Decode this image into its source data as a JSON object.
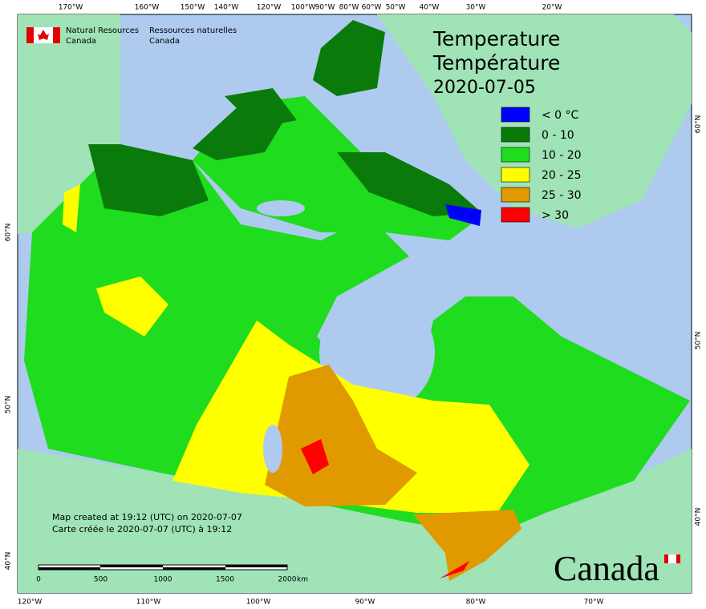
{
  "header": {
    "agency_en": "Natural Resources",
    "country_en": "Canada",
    "agency_fr": "Ressources naturelles",
    "country_fr": "Canada"
  },
  "title": {
    "en": "Temperature",
    "fr": "Température",
    "date": "2020-07-05"
  },
  "legend": [
    {
      "label": "< 0 °C",
      "color": "#0000ff"
    },
    {
      "label": "0 - 10",
      "color": "#0a7a0a"
    },
    {
      "label": "10 - 20",
      "color": "#1fdc1f"
    },
    {
      "label": "20 - 25",
      "color": "#ffff00"
    },
    {
      "label": "25 - 30",
      "color": "#e09a00"
    },
    {
      "label": "> 30",
      "color": "#ff0000"
    }
  ],
  "graticule": {
    "top": [
      "170°W",
      "160°W",
      "150°W",
      "140°W",
      "120°W",
      "100°W",
      "90°W",
      "80°W",
      "60°W",
      "50°W",
      "40°W",
      "30°W",
      "20°W"
    ],
    "bottom": [
      "120°W",
      "110°W",
      "100°W",
      "90°W",
      "80°W",
      "70°W"
    ],
    "left": [
      "60°N",
      "50°N",
      "40°N"
    ],
    "right": [
      "60°N",
      "50°N",
      "40°N"
    ]
  },
  "credits": [
    "Map created at 19:12 (UTC) on 2020-07-07",
    "Carte créée le 2020-07-07 (UTC) à 19:12"
  ],
  "scale_bar": {
    "labels": [
      0,
      500,
      1000,
      1500,
      2000
    ],
    "unit": "km"
  },
  "wordmark": "Canada"
}
